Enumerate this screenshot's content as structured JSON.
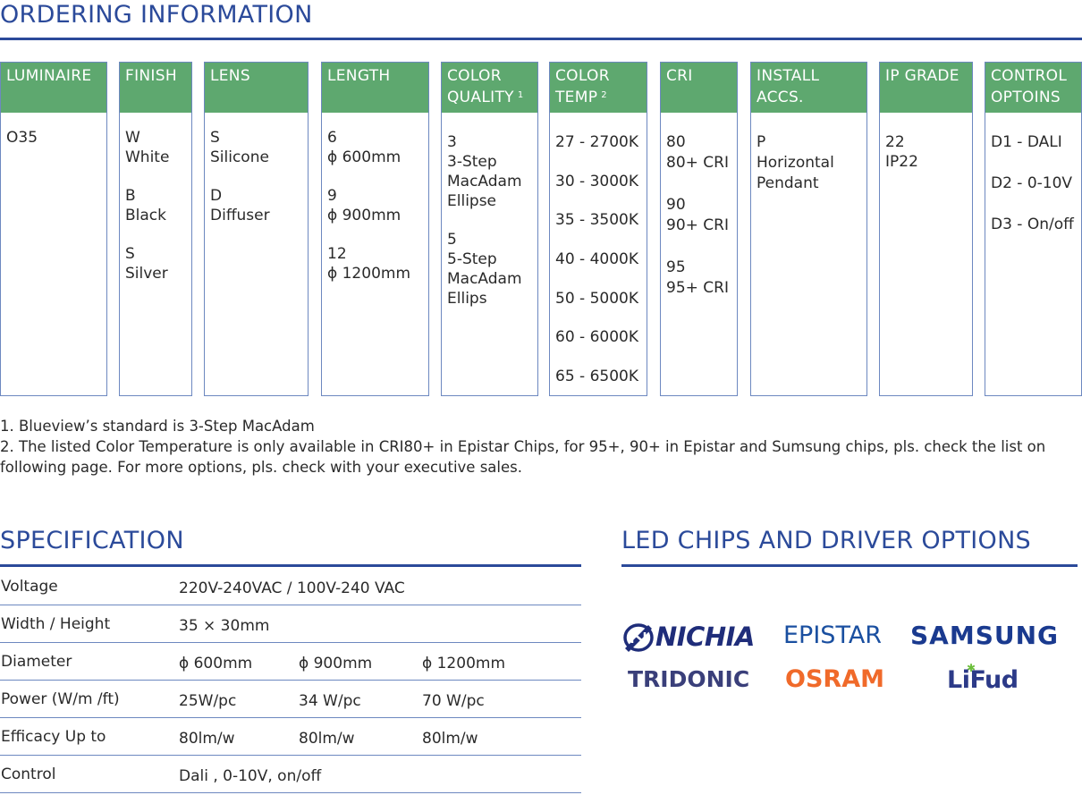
{
  "ordering": {
    "title": "ORDERING INFORMATION",
    "columns": [
      {
        "id": "luminaire",
        "header": [
          "LUMINAIRE"
        ],
        "groups": [
          [
            "O35"
          ]
        ]
      },
      {
        "id": "finish",
        "header": [
          "FINISH"
        ],
        "groups": [
          [
            "W",
            "White"
          ],
          [
            "B",
            "Black"
          ],
          [
            "S",
            "Silver"
          ]
        ]
      },
      {
        "id": "lens",
        "header": [
          "LENS"
        ],
        "groups": [
          [
            "S",
            "Silicone"
          ],
          [
            "D",
            "Diffuser"
          ]
        ]
      },
      {
        "id": "length",
        "header": [
          "LENGTH"
        ],
        "groups": [
          [
            "6",
            "ϕ 600mm"
          ],
          [
            "9",
            "ϕ 900mm"
          ],
          [
            "12",
            "ϕ 1200mm"
          ]
        ]
      },
      {
        "id": "color-quality",
        "header": [
          "COLOR",
          "QUALITY"
        ],
        "header_sup": "1",
        "groups": [
          [
            "3",
            "3-Step",
            "MacAdam",
            "Ellipse"
          ],
          [
            "5",
            "5-Step",
            "MacAdam",
            "Ellips"
          ]
        ]
      },
      {
        "id": "color-temp",
        "header": [
          "COLOR",
          "TEMP"
        ],
        "header_sup": "2",
        "items": [
          "27 - 2700K",
          "30 - 3000K",
          "35 - 3500K",
          "40 - 4000K",
          "50 - 5000K",
          "60 - 6000K",
          "65 - 6500K"
        ]
      },
      {
        "id": "cri",
        "header": [
          "CRI"
        ],
        "groups": [
          [
            "80",
            "80+ CRI"
          ],
          [
            "90",
            "90+ CRI"
          ],
          [
            "95",
            "95+ CRI"
          ]
        ]
      },
      {
        "id": "install-accs",
        "header": [
          "INSTALL",
          "ACCS."
        ],
        "groups": [
          [
            "P",
            "Horizontal",
            "Pendant"
          ]
        ]
      },
      {
        "id": "ip-grade",
        "header": [
          "IP GRADE"
        ],
        "groups": [
          [
            "22",
            "IP22"
          ]
        ]
      },
      {
        "id": "control",
        "header": [
          "CONTROL",
          "OPTOINS"
        ],
        "groups": [
          [
            "D1 - DALI"
          ],
          [
            "D2 - 0-10V"
          ],
          [
            "D3 - On/off"
          ]
        ]
      }
    ],
    "notes": [
      "1. Blueview’s standard is 3-Step MacAdam",
      "2. The listed Color Temperature is only available in CRI80+ in Epistar Chips, for 95+, 90+ in Epistar and Sumsung chips, pls. check the list on following page. For more options, pls. check with your executive sales."
    ]
  },
  "specification": {
    "title": "SPECIFICATION",
    "rows": [
      {
        "label": "Voltage",
        "values": [
          "220V-240VAC / 100V-240 VAC"
        ]
      },
      {
        "label": "Width / Height",
        "values": [
          "35 × 30mm"
        ]
      },
      {
        "label": "Diameter",
        "values": [
          "ϕ 600mm",
          "ϕ 900mm",
          "ϕ 1200mm"
        ]
      },
      {
        "label": "Power (W/m /ft)",
        "values": [
          "25W/pc",
          "34  W/pc",
          "70 W/pc"
        ]
      },
      {
        "label": "Efficacy Up to",
        "values": [
          "80lm/w",
          "80lm/w",
          "80lm/w"
        ]
      },
      {
        "label": "Control",
        "values": [
          "Dali , 0-10V, on/off"
        ]
      }
    ]
  },
  "led_chips": {
    "title": "LED CHIPS AND DRIVER OPTIONS",
    "brands": [
      {
        "name": "NICHIA",
        "color": "#1f2d7a",
        "icon": "nichia-logo-icon"
      },
      {
        "name": "EPISTAR",
        "color": "#1a4fa0"
      },
      {
        "name": "SAMSUNG",
        "color": "#1a3a8f"
      },
      {
        "name": "TRIDONIC",
        "color": "#3a3f7a"
      },
      {
        "name": "OSRAM",
        "color": "#f06a2a"
      },
      {
        "name": "LiFud",
        "color": "#2c3a88",
        "accent": "#6bbf3a"
      }
    ]
  },
  "colors": {
    "accent_blue": "#2b4a9a",
    "header_green": "#5ea86f",
    "border_blue": "#6d88c0"
  }
}
